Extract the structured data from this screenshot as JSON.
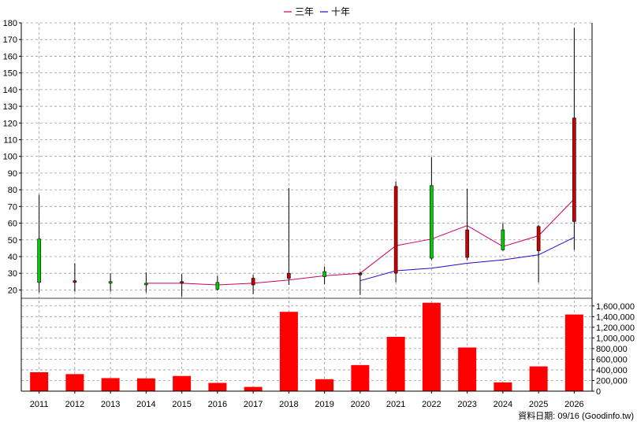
{
  "chart_data": {
    "type": "candlestick+line+bar",
    "categories": [
      "2011",
      "2012",
      "2013",
      "2014",
      "2015",
      "2016",
      "2017",
      "2018",
      "2019",
      "2020",
      "2021",
      "2022",
      "2023",
      "2024",
      "2025",
      "2026"
    ],
    "price_axis": {
      "ylim": [
        15,
        180
      ],
      "ticks": [
        20,
        30,
        40,
        50,
        60,
        70,
        80,
        90,
        100,
        110,
        120,
        130,
        140,
        150,
        160,
        170,
        180
      ]
    },
    "volume_axis": {
      "ylim": [
        0,
        1700000
      ],
      "ticks": [
        0,
        200000,
        400000,
        600000,
        800000,
        1000000,
        1200000,
        1400000,
        1600000
      ],
      "tick_labels": [
        "0",
        "200,000",
        "400,000",
        "600,000",
        "800,000",
        "1,000,000",
        "1,200,000",
        "1,400,000",
        "1,600,000"
      ]
    },
    "candles": [
      {
        "year": "2011",
        "open": 24.5,
        "close": 50.5,
        "high": 77,
        "low": 18.5
      },
      {
        "year": "2012",
        "open": 25.5,
        "close": 24.5,
        "high": 36,
        "low": 19
      },
      {
        "year": "2013",
        "open": 24,
        "close": 25,
        "high": 30,
        "low": 19
      },
      {
        "year": "2014",
        "open": 24,
        "close": 24,
        "high": 30.5,
        "low": 18.5
      },
      {
        "year": "2015",
        "open": 25,
        "close": 24,
        "high": 29.5,
        "low": 16
      },
      {
        "year": "2016",
        "open": 20.5,
        "close": 24.5,
        "high": 28.5,
        "low": 19.5
      },
      {
        "year": "2017",
        "open": 27,
        "close": 23,
        "high": 29,
        "low": 17.5
      },
      {
        "year": "2018",
        "open": 30,
        "close": 27,
        "high": 81,
        "low": 23
      },
      {
        "year": "2019",
        "open": 28,
        "close": 31,
        "high": 34,
        "low": 23.5
      },
      {
        "year": "2020",
        "open": 30,
        "close": 29,
        "high": 31,
        "low": 17
      },
      {
        "year": "2021",
        "open": 82,
        "close": 30,
        "high": 85,
        "low": 24.5
      },
      {
        "year": "2022",
        "open": 39,
        "close": 82.5,
        "high": 99.5,
        "low": 38
      },
      {
        "year": "2023",
        "open": 56,
        "close": 39.5,
        "high": 80.5,
        "low": 38
      },
      {
        "year": "2024",
        "open": 44,
        "close": 56,
        "high": 60,
        "low": 43.5
      },
      {
        "year": "2025",
        "open": 58,
        "close": 43.5,
        "high": 59,
        "low": 24.5
      },
      {
        "year": "2026",
        "open": 123,
        "close": 61,
        "high": 177,
        "low": 44
      }
    ],
    "series": [
      {
        "name": "三年",
        "color": "#cc0066",
        "x": [
          "2014",
          "2015",
          "2016",
          "2017",
          "2018",
          "2019",
          "2020",
          "2021",
          "2022",
          "2023",
          "2024",
          "2025",
          "2026"
        ],
        "values": [
          24,
          24,
          23,
          24,
          26,
          28.5,
          30,
          46.5,
          50.5,
          58.5,
          46,
          52.5,
          74.5
        ]
      },
      {
        "name": "十年",
        "color": "#3300cc",
        "x": [
          "2020",
          "2021",
          "2022",
          "2023",
          "2024",
          "2025",
          "2026"
        ],
        "values": [
          25.5,
          31.5,
          33,
          36,
          38,
          41,
          51.5
        ]
      }
    ],
    "volume": [
      355000,
      320000,
      245000,
      240000,
      285000,
      155000,
      80000,
      1490000,
      225000,
      490000,
      1020000,
      1660000,
      820000,
      165000,
      465000,
      1440000
    ],
    "colors": {
      "up": "#00cc00",
      "down": "#cc0000",
      "volume": "#ff0000"
    },
    "legend_position": "top-center",
    "grid": true
  },
  "footer": {
    "text": "資料日期: 09/16 (Goodinfo.tw)"
  }
}
